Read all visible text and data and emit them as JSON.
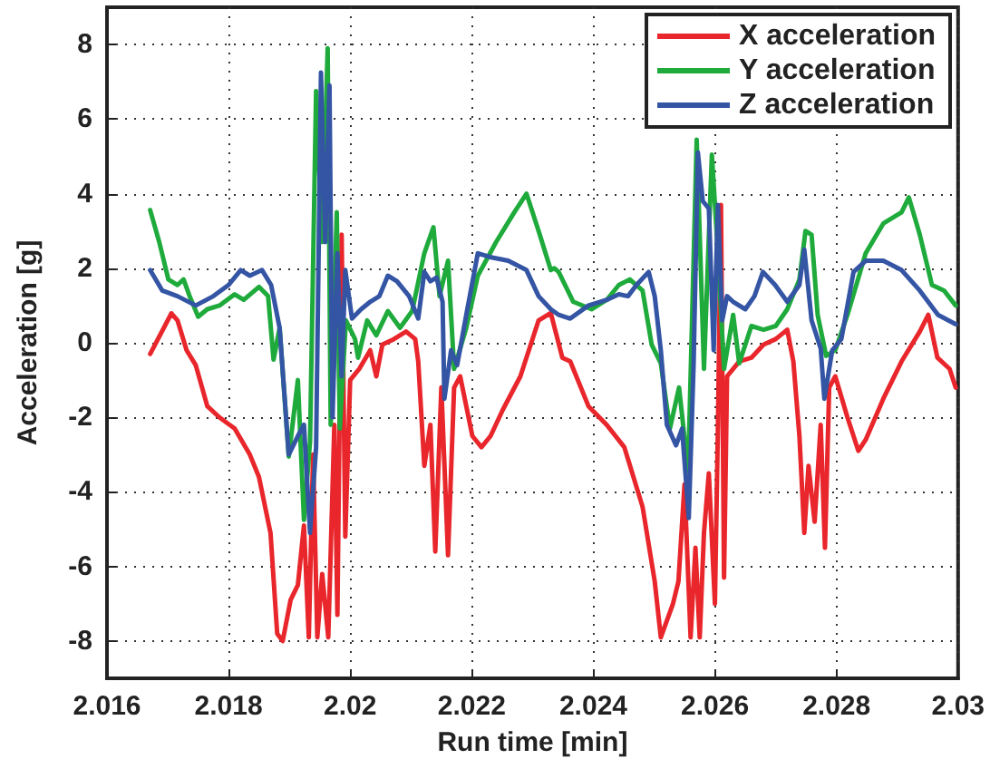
{
  "chart_data": {
    "type": "line",
    "xlabel": "Run time [min]",
    "ylabel": "Acceleration [g]",
    "xlim": [
      2.016,
      2.03
    ],
    "xticks": [
      2.016,
      2.018,
      2.02,
      2.022,
      2.024,
      2.026,
      2.028,
      2.03
    ],
    "ylim": [
      -9,
      9
    ],
    "yticks": [
      -8,
      -6,
      -4,
      -2,
      0,
      2,
      4,
      6,
      8
    ],
    "grid": true,
    "legend": "top right",
    "marker": "none",
    "line_style": "solid",
    "series": [
      {
        "name": "X acceleration",
        "color": "#e8262b",
        "x": [
          2.01671,
          2.01706,
          2.01716,
          2.01731,
          2.01746,
          2.01765,
          2.01785,
          2.0181,
          2.01835,
          2.0185,
          2.01869,
          2.0188,
          2.01889,
          2.01902,
          2.01914,
          2.01924,
          2.01932,
          2.01939,
          2.01946,
          2.01954,
          2.01964,
          2.01974,
          2.01979,
          2.01986,
          2.01992,
          2.02,
          2.02015,
          2.02033,
          2.02043,
          2.02053,
          2.02072,
          2.02092,
          2.02107,
          2.02112,
          2.02122,
          2.02132,
          2.0214,
          2.0215,
          2.02161,
          2.02171,
          2.02181,
          2.02201,
          2.02216,
          2.02231,
          2.02251,
          2.0228,
          2.0231,
          2.0233,
          2.02349,
          2.02362,
          2.02392,
          2.02422,
          2.02451,
          2.02481,
          2.02501,
          2.02511,
          2.02531,
          2.0254,
          2.0255,
          2.0256,
          2.02568,
          2.02575,
          2.02582,
          2.0259,
          2.026,
          2.02605,
          2.0261,
          2.02615,
          2.0262,
          2.0264,
          2.0266,
          2.0268,
          2.027,
          2.02719,
          2.02729,
          2.02739,
          2.02747,
          2.02754,
          2.02764,
          2.02774,
          2.02781,
          2.02788,
          2.02798,
          2.02818,
          2.02836,
          2.02848,
          2.02877,
          2.02907,
          2.02937,
          2.02951,
          2.02966,
          2.02986,
          2.02996
        ],
        "values": [
          -0.3,
          0.79,
          0.6,
          -0.2,
          -0.6,
          -1.7,
          -2.0,
          -2.3,
          -3.0,
          -3.6,
          -5.1,
          -7.8,
          -8.0,
          -6.9,
          -6.5,
          -4.9,
          -7.9,
          -3.0,
          -7.9,
          -6.2,
          -7.9,
          -2.2,
          -7.3,
          2.9,
          -5.2,
          -1.0,
          -0.7,
          -0.2,
          -0.9,
          -0.05,
          0.1,
          0.3,
          0.1,
          -0.5,
          -3.3,
          -2.2,
          -5.6,
          -1.2,
          -5.7,
          -1.2,
          -0.9,
          -2.5,
          -2.8,
          -2.5,
          -1.8,
          -0.9,
          0.6,
          0.8,
          -0.4,
          -0.5,
          -1.7,
          -2.2,
          -2.8,
          -4.4,
          -6.4,
          -7.9,
          -7.0,
          -6.4,
          -3.8,
          -7.9,
          -5.5,
          -7.9,
          -5.1,
          -3.5,
          -7.0,
          -2.2,
          3.7,
          -6.3,
          -0.9,
          -0.5,
          -0.4,
          -0.05,
          0.1,
          0.35,
          -0.5,
          -2.5,
          -5.1,
          -3.3,
          -4.8,
          -2.2,
          -5.5,
          -1.2,
          -0.9,
          -2.0,
          -2.9,
          -2.6,
          -1.5,
          -0.5,
          0.3,
          0.75,
          -0.4,
          -0.7,
          -1.2
        ]
      },
      {
        "name": "Y acceleration",
        "color": "#1faa3c",
        "x": [
          2.01671,
          2.01686,
          2.01701,
          2.01716,
          2.01726,
          2.01736,
          2.0175,
          2.01765,
          2.01785,
          2.0181,
          2.01825,
          2.0185,
          2.01865,
          2.01874,
          2.01884,
          2.01899,
          2.01914,
          2.01924,
          2.01934,
          2.01944,
          2.01954,
          2.01963,
          2.01968,
          2.01978,
          2.01983,
          2.01993,
          2.02008,
          2.02013,
          2.02028,
          2.02043,
          2.02062,
          2.02082,
          2.02102,
          2.02122,
          2.02137,
          2.02147,
          2.02161,
          2.02171,
          2.02191,
          2.0221,
          2.0224,
          2.0227,
          2.0229,
          2.0231,
          2.0233,
          2.02336,
          2.02343,
          2.02367,
          2.02397,
          2.02422,
          2.02442,
          2.0246,
          2.02481,
          2.02496,
          2.02511,
          2.02526,
          2.02541,
          2.02556,
          2.0257,
          2.02582,
          2.02595,
          2.02605,
          2.02615,
          2.0263,
          2.0264,
          2.0266,
          2.0268,
          2.027,
          2.02719,
          2.02739,
          2.02749,
          2.02759,
          2.02769,
          2.02783,
          2.02798,
          2.02818,
          2.02848,
          2.02877,
          2.02907,
          2.02919,
          2.02937,
          2.02957,
          2.02977,
          2.02996
        ],
        "values": [
          3.56,
          2.7,
          1.7,
          1.55,
          1.7,
          1.25,
          0.7,
          0.9,
          1.0,
          1.3,
          1.15,
          1.5,
          1.25,
          -0.45,
          0.4,
          -3.05,
          -1.0,
          -4.75,
          -2.65,
          6.75,
          2.7,
          7.9,
          -2.2,
          3.5,
          -2.3,
          0.6,
          0.1,
          -0.4,
          0.6,
          0.2,
          0.85,
          0.4,
          0.85,
          2.4,
          3.1,
          1.25,
          2.2,
          -0.7,
          0.4,
          1.8,
          2.7,
          3.5,
          4.0,
          3.0,
          1.95,
          2.0,
          1.9,
          1.1,
          0.9,
          1.15,
          1.55,
          1.7,
          1.4,
          -0.05,
          -0.55,
          -2.3,
          -1.2,
          -3.45,
          5.45,
          -0.7,
          5.05,
          2.4,
          -0.7,
          0.75,
          -0.55,
          0.45,
          0.35,
          0.45,
          0.9,
          1.7,
          3.0,
          2.9,
          0.75,
          -0.35,
          -0.2,
          0.75,
          2.4,
          3.2,
          3.5,
          3.9,
          2.9,
          1.55,
          1.4,
          1.0
        ]
      },
      {
        "name": "Z acceleration",
        "color": "#3454a4",
        "x": [
          2.01671,
          2.01691,
          2.01716,
          2.01746,
          2.01775,
          2.018,
          2.0182,
          2.01835,
          2.01855,
          2.0187,
          2.01884,
          2.01899,
          2.01914,
          2.01924,
          2.01934,
          2.01944,
          2.01952,
          2.01959,
          2.01966,
          2.01971,
          2.01979,
          2.01986,
          2.01992,
          2.02003,
          2.02018,
          2.02033,
          2.02048,
          2.02062,
          2.02077,
          2.02097,
          2.02112,
          2.02122,
          2.02132,
          2.02142,
          2.02152,
          2.02155,
          2.02166,
          2.02176,
          2.02191,
          2.0221,
          2.0223,
          2.0226,
          2.0229,
          2.0231,
          2.0233,
          2.02343,
          2.02362,
          2.02392,
          2.02422,
          2.02442,
          2.02457,
          2.02471,
          2.02491,
          2.02501,
          2.02511,
          2.02521,
          2.02536,
          2.02546,
          2.02557,
          2.02565,
          2.02572,
          2.0258,
          2.0259,
          2.02598,
          2.02605,
          2.02612,
          2.0262,
          2.0263,
          2.0265,
          2.02665,
          2.02679,
          2.02699,
          2.02719,
          2.02739,
          2.02747,
          2.02759,
          2.02774,
          2.0278,
          2.02793,
          2.02808,
          2.02828,
          2.02848,
          2.02877,
          2.02907,
          2.02937,
          2.02967,
          2.02996
        ],
        "values": [
          1.95,
          1.4,
          1.25,
          1.0,
          1.25,
          1.55,
          1.95,
          1.8,
          1.95,
          1.55,
          0.4,
          -3.0,
          -2.5,
          -2.2,
          -5.1,
          -2.8,
          7.25,
          2.7,
          6.9,
          -2.0,
          2.4,
          -0.9,
          1.95,
          0.65,
          0.9,
          1.1,
          1.25,
          1.8,
          1.65,
          1.25,
          0.65,
          1.9,
          1.65,
          1.75,
          1.1,
          -1.5,
          -0.2,
          -0.6,
          0.75,
          2.4,
          2.3,
          2.2,
          1.95,
          1.25,
          0.9,
          0.75,
          0.65,
          1.0,
          1.15,
          1.3,
          1.25,
          1.55,
          1.9,
          1.25,
          -0.2,
          -2.2,
          -2.75,
          -2.3,
          -4.7,
          -0.55,
          5.1,
          3.8,
          3.6,
          -0.2,
          3.7,
          0.6,
          1.25,
          1.1,
          0.9,
          1.25,
          1.9,
          1.55,
          1.1,
          1.55,
          2.5,
          0.6,
          -0.15,
          -1.5,
          -0.2,
          0.1,
          1.9,
          2.2,
          2.2,
          1.95,
          1.4,
          0.75,
          0.5
        ]
      }
    ]
  }
}
